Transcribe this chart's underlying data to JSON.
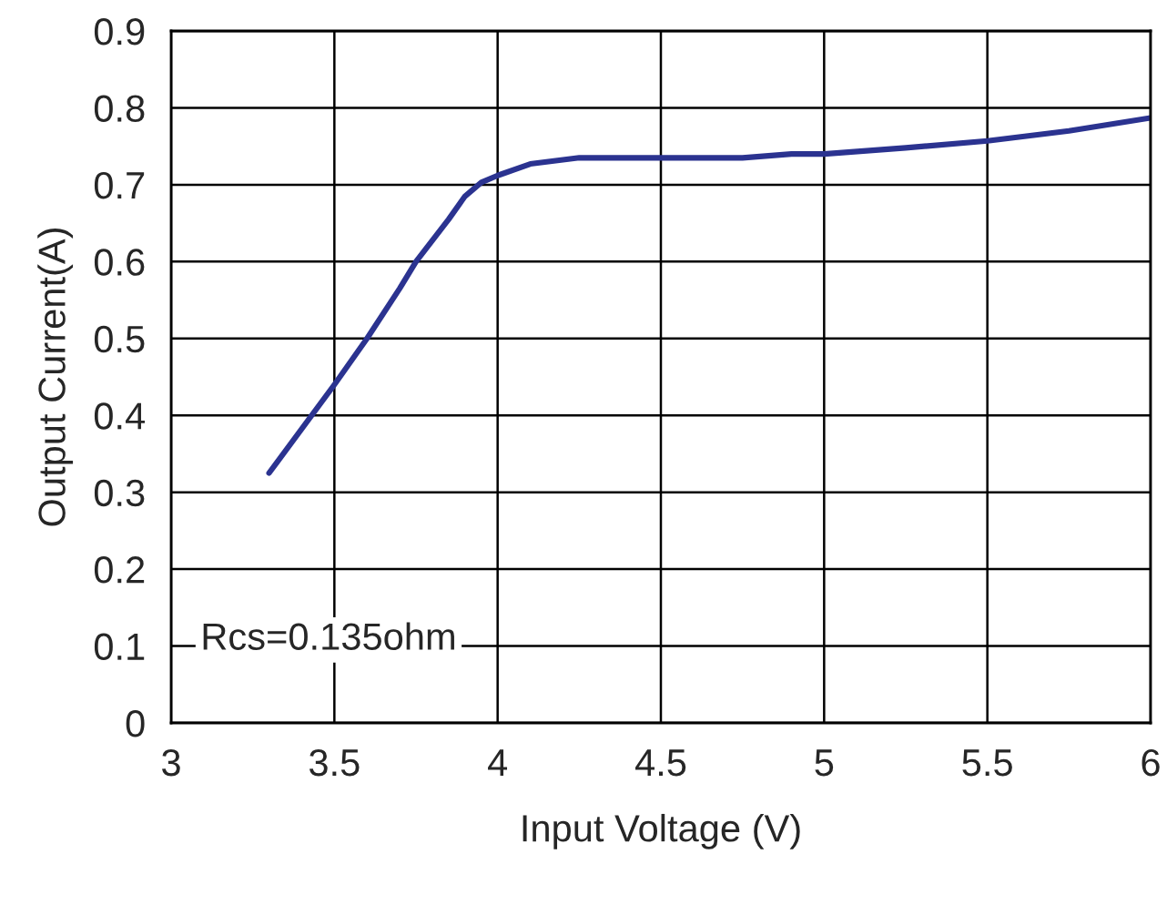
{
  "chart_data": {
    "type": "line",
    "xlabel": "Input Voltage (V)",
    "ylabel": "Output Current(A)",
    "x": [
      3.3,
      3.5,
      3.6,
      3.7,
      3.75,
      3.85,
      3.9,
      3.95,
      4.0,
      4.1,
      4.25,
      4.5,
      4.75,
      4.9,
      5.0,
      5.25,
      5.5,
      5.75,
      6.0
    ],
    "series": [
      {
        "color": "#2b3390",
        "values": [
          0.325,
          0.44,
          0.5,
          0.565,
          0.6,
          0.655,
          0.685,
          0.703,
          0.712,
          0.727,
          0.735,
          0.735,
          0.735,
          0.74,
          0.74,
          0.748,
          0.757,
          0.77,
          0.787
        ]
      }
    ],
    "xlim": [
      3,
      6
    ],
    "xticks": [
      3,
      3.5,
      4,
      4.5,
      5,
      5.5,
      6
    ],
    "ylim": [
      0,
      0.9
    ],
    "yticks": [
      0,
      0.1,
      0.2,
      0.3,
      0.4,
      0.5,
      0.6,
      0.7,
      0.8,
      0.9
    ],
    "grid": true,
    "marker": "none",
    "line_style": "solid",
    "legend": false,
    "annotations": [
      "Rcs=0.135ohm"
    ]
  }
}
